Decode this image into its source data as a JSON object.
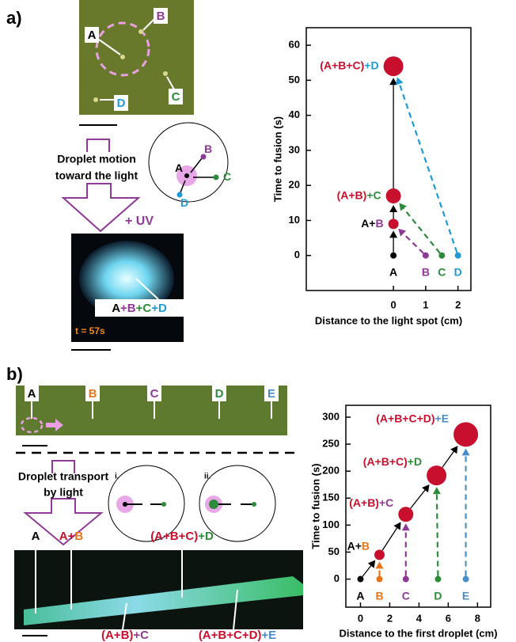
{
  "panel_a": {
    "label": "a)",
    "photo_labels": [
      [
        {
          "text": "A",
          "color": "#000000"
        }
      ],
      [
        {
          "text": "B",
          "color": "#8e3a96"
        }
      ],
      [
        {
          "text": "C",
          "color": "#2e8b3a"
        }
      ],
      [
        {
          "text": "D",
          "color": "#1e9ad6"
        }
      ]
    ],
    "motion_caption": [
      "Droplet motion",
      "toward the light"
    ],
    "uv_label": "+ UV",
    "inset_labels": [
      [
        {
          "text": "A",
          "color": "#000000"
        }
      ],
      [
        {
          "text": "B",
          "color": "#8e3a96"
        }
      ],
      [
        {
          "text": "C",
          "color": "#2e8b3a"
        }
      ],
      [
        {
          "text": "D",
          "color": "#1e9ad6"
        }
      ]
    ],
    "fusion_label": [
      {
        "text": "A",
        "color": "#000000"
      },
      {
        "text": "+B",
        "color": "#8e3a96"
      },
      {
        "text": "+C",
        "color": "#2e8b3a"
      },
      {
        "text": "+D",
        "color": "#1e9ad6"
      }
    ],
    "time_label": "t = 57s"
  },
  "panel_b": {
    "label": "b)",
    "photo_labels": [
      [
        {
          "text": "A",
          "color": "#000000"
        }
      ],
      [
        {
          "text": "B",
          "color": "#e8741a"
        }
      ],
      [
        {
          "text": "C",
          "color": "#8e3a96"
        }
      ],
      [
        {
          "text": "D",
          "color": "#2e8b3a"
        }
      ],
      [
        {
          "text": "E",
          "color": "#4a8cc8"
        }
      ]
    ],
    "transport_caption": [
      "Droplet transport",
      "by light"
    ],
    "inset_labels": [
      "i.",
      "ii."
    ],
    "sequence_labels": [
      [
        {
          "text": "A",
          "color": "#000000"
        }
      ],
      [
        {
          "text": "A+",
          "color": "#c8102e"
        },
        {
          "text": "B",
          "color": "#e8741a"
        }
      ],
      [
        {
          "text": "(A+B+C)",
          "color": "#c8102e"
        },
        {
          "text": "+D",
          "color": "#2e8b3a"
        }
      ],
      [
        {
          "text": "(A+B)",
          "color": "#c8102e"
        },
        {
          "text": "+C",
          "color": "#8e3a96"
        }
      ],
      [
        {
          "text": "(A+B+C+D)",
          "color": "#c8102e"
        },
        {
          "text": "+E",
          "color": "#4a8cc8"
        }
      ]
    ]
  },
  "chart_data": [
    {
      "type": "scatter",
      "xlabel": "Distance to the light spot (cm)",
      "ylabel": "Time to fusion (s)",
      "xlim": [
        -2.7,
        2.4
      ],
      "ylim": [
        -10,
        65
      ],
      "xticks": [
        0,
        1,
        2
      ],
      "yticks": [
        0,
        10,
        20,
        30,
        40,
        50,
        60
      ],
      "x": [
        0,
        1,
        1.5,
        2,
        0,
        0,
        0
      ],
      "values": [
        0,
        0,
        0,
        0,
        9,
        17,
        54
      ],
      "sizes": [
        1,
        1,
        1,
        1,
        2,
        3,
        4
      ],
      "colors": [
        "#000000",
        "#8e3a96",
        "#2e8b3a",
        "#1e9ad6",
        "#c8102e",
        "#c8102e",
        "#c8102e"
      ],
      "labels": [
        [
          {
            "text": "A",
            "color": "#000000"
          }
        ],
        [
          {
            "text": "B",
            "color": "#8e3a96"
          }
        ],
        [
          {
            "text": "C",
            "color": "#2e8b3a"
          }
        ],
        [
          {
            "text": "D",
            "color": "#1e9ad6"
          }
        ],
        [
          {
            "text": "A+",
            "color": "#000000"
          },
          {
            "text": "B",
            "color": "#8e3a96"
          }
        ],
        [
          {
            "text": "(A+B)",
            "color": "#c8102e"
          },
          {
            "text": "+C",
            "color": "#2e8b3a"
          }
        ],
        [
          {
            "text": "(A+B+C)",
            "color": "#c8102e"
          },
          {
            "text": "+D",
            "color": "#1e9ad6"
          }
        ]
      ]
    },
    {
      "type": "scatter",
      "xlabel": "Distance to the first droplet (cm)",
      "ylabel": "Time to fusion (s)",
      "xlim": [
        -1,
        8.9
      ],
      "ylim": [
        -52,
        322
      ],
      "xticks": [
        0,
        2,
        4,
        6,
        8
      ],
      "yticks": [
        0,
        50,
        100,
        150,
        200,
        250,
        300
      ],
      "x": [
        0,
        1.3,
        3.1,
        5.3,
        7.2,
        1.3,
        3.1,
        5.2,
        7.2
      ],
      "values": [
        0,
        0,
        0,
        0,
        0,
        45,
        120,
        192,
        268
      ],
      "sizes": [
        1,
        1,
        1,
        1,
        1,
        2,
        3,
        4,
        5
      ],
      "colors": [
        "#000000",
        "#e8741a",
        "#8e3a96",
        "#2e8b3a",
        "#4a8cc8",
        "#c8102e",
        "#c8102e",
        "#c8102e",
        "#c8102e"
      ],
      "labels": [
        [
          {
            "text": "A",
            "color": "#000000"
          }
        ],
        [
          {
            "text": "B",
            "color": "#e8741a"
          }
        ],
        [
          {
            "text": "C",
            "color": "#8e3a96"
          }
        ],
        [
          {
            "text": "D",
            "color": "#2e8b3a"
          }
        ],
        [
          {
            "text": "E",
            "color": "#4a8cc8"
          }
        ],
        [
          {
            "text": "A+",
            "color": "#000000"
          },
          {
            "text": "B",
            "color": "#e8741a"
          }
        ],
        [
          {
            "text": "(A+B)",
            "color": "#c8102e"
          },
          {
            "text": "+C",
            "color": "#8e3a96"
          }
        ],
        [
          {
            "text": "(A+B+C)",
            "color": "#c8102e"
          },
          {
            "text": "+D",
            "color": "#2e8b3a"
          }
        ],
        [
          {
            "text": "(A+B+C+D)",
            "color": "#c8102e"
          },
          {
            "text": "+E",
            "color": "#4a8cc8"
          }
        ]
      ]
    }
  ]
}
